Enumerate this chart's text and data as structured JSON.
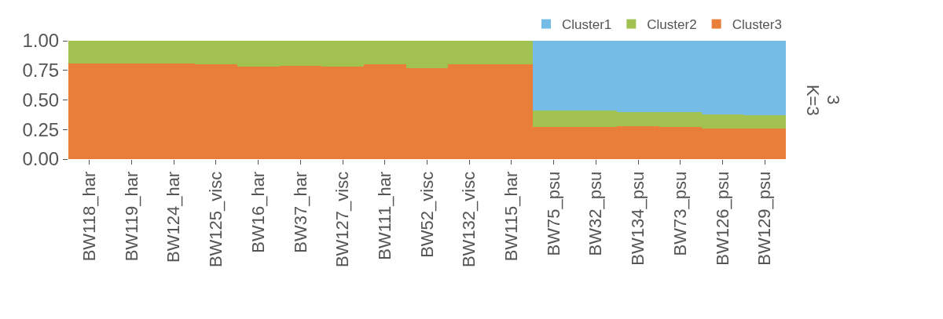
{
  "chart_data": {
    "type": "bar",
    "stacked": true,
    "categories": [
      "BW118_har",
      "BW119_har",
      "BW124_har",
      "BW125_visc",
      "BW16_har",
      "BW37_har",
      "BW127_visc",
      "BW111_har",
      "BW52_visc",
      "BW132_visc",
      "BW115_har",
      "BW75_psu",
      "BW32_psu",
      "BW134_psu",
      "BW73_psu",
      "BW126_psu",
      "BW129_psu"
    ],
    "series": [
      {
        "name": "Cluster3",
        "color": "#e97e3a",
        "values": [
          0.81,
          0.81,
          0.81,
          0.8,
          0.78,
          0.79,
          0.78,
          0.8,
          0.77,
          0.8,
          0.8,
          0.27,
          0.27,
          0.28,
          0.27,
          0.26,
          0.26
        ]
      },
      {
        "name": "Cluster2",
        "color": "#a1c150",
        "values": [
          0.19,
          0.19,
          0.19,
          0.2,
          0.22,
          0.21,
          0.22,
          0.2,
          0.23,
          0.2,
          0.2,
          0.14,
          0.14,
          0.12,
          0.13,
          0.12,
          0.11
        ]
      },
      {
        "name": "Cluster1",
        "color": "#74bce6",
        "values": [
          0,
          0,
          0,
          0,
          0,
          0,
          0,
          0,
          0,
          0,
          0,
          0.59,
          0.59,
          0.6,
          0.6,
          0.62,
          0.63
        ]
      }
    ],
    "ylim": [
      0,
      1
    ],
    "yticks": [
      {
        "value": 0,
        "label": "0.00"
      },
      {
        "value": 0.25,
        "label": "0.25"
      },
      {
        "value": 0.5,
        "label": "0.50"
      },
      {
        "value": 0.75,
        "label": "0.75"
      },
      {
        "value": 1,
        "label": "1.00"
      }
    ],
    "legend": "top right",
    "annotations": [
      "3",
      "K=3"
    ]
  }
}
